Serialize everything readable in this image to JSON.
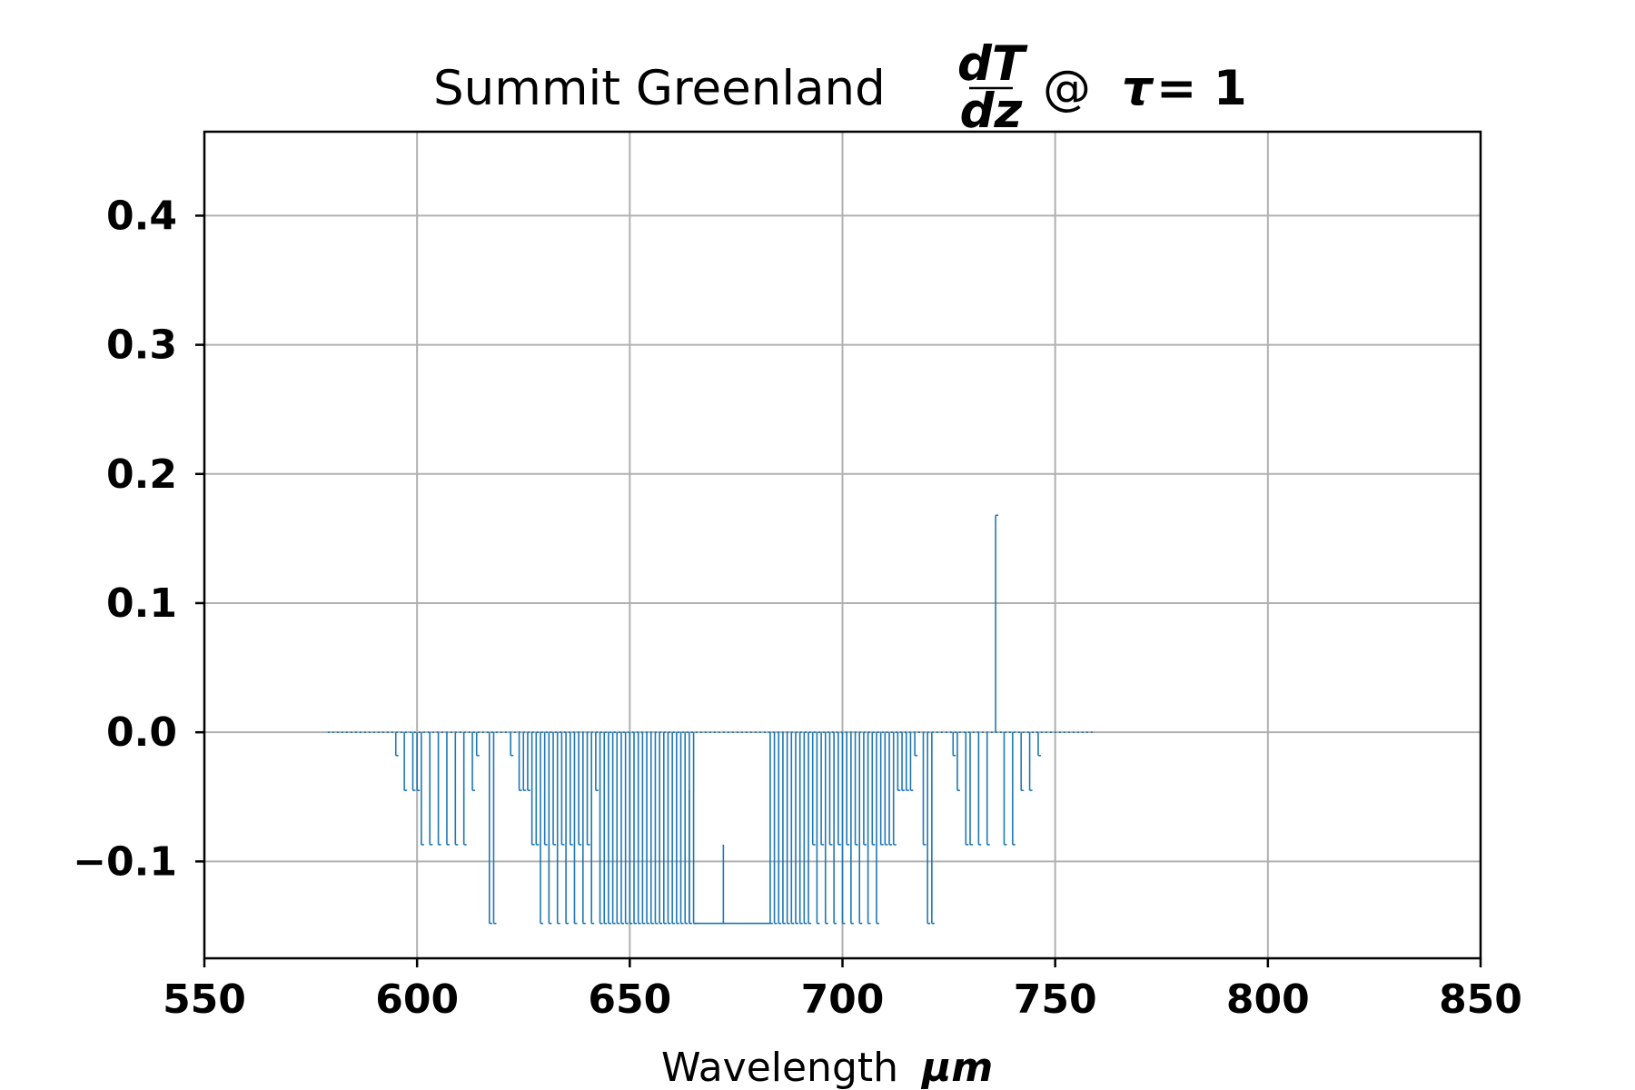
{
  "chart_data": {
    "type": "line",
    "title": {
      "prefix": "Summit Greenland",
      "fraction_numerator": "dT",
      "fraction_denominator": "dz",
      "suffix": "@",
      "tau_symbol": "τ",
      "tau_equals": "= 1"
    },
    "xlabel": {
      "text": "Wavelength",
      "unit": "μm"
    },
    "ylabel": "",
    "xlim": [
      550,
      850
    ],
    "ylim": [
      -0.175,
      0.465
    ],
    "x_ticks": [
      550,
      600,
      650,
      700,
      750,
      800,
      850
    ],
    "x_tick_labels": [
      "550",
      "600",
      "650",
      "700",
      "750",
      "800",
      "850"
    ],
    "y_ticks": [
      -0.1,
      0.0,
      0.1,
      0.2,
      0.3,
      0.4
    ],
    "y_tick_labels": [
      "−0.1",
      "0.0",
      "0.1",
      "0.2",
      "0.3",
      "0.4"
    ],
    "grid": true,
    "line_color": "#1f77b4",
    "series": [
      {
        "x_range": [
          579,
          759
        ],
        "baseline": 0.0,
        "spikes": [
          {
            "x": 595,
            "y": -0.018
          },
          {
            "x": 597,
            "y": -0.045
          },
          {
            "x": 599,
            "y": -0.045
          },
          {
            "x": 600,
            "y": -0.045
          },
          {
            "x": 601,
            "y": -0.087
          },
          {
            "x": 603,
            "y": -0.087
          },
          {
            "x": 605,
            "y": -0.087
          },
          {
            "x": 607,
            "y": -0.087
          },
          {
            "x": 609,
            "y": -0.087
          },
          {
            "x": 611,
            "y": -0.087
          },
          {
            "x": 613,
            "y": -0.045
          },
          {
            "x": 614,
            "y": -0.018
          },
          {
            "x": 617,
            "y": -0.148
          },
          {
            "x": 618,
            "y": -0.148
          },
          {
            "x": 622,
            "y": -0.018
          },
          {
            "x": 624,
            "y": -0.045
          },
          {
            "x": 625,
            "y": -0.045
          },
          {
            "x": 626,
            "y": -0.045
          },
          {
            "x": 627,
            "y": -0.087
          },
          {
            "x": 628,
            "y": -0.087
          },
          {
            "x": 629,
            "y": -0.148
          },
          {
            "x": 630,
            "y": -0.087
          },
          {
            "x": 631,
            "y": -0.148
          },
          {
            "x": 632,
            "y": -0.087
          },
          {
            "x": 633,
            "y": -0.148
          },
          {
            "x": 634,
            "y": -0.087
          },
          {
            "x": 635,
            "y": -0.148
          },
          {
            "x": 636,
            "y": -0.087
          },
          {
            "x": 637,
            "y": -0.148
          },
          {
            "x": 638,
            "y": -0.087
          },
          {
            "x": 639,
            "y": -0.148
          },
          {
            "x": 640,
            "y": -0.087
          },
          {
            "x": 641,
            "y": -0.148
          },
          {
            "x": 642,
            "y": -0.045
          },
          {
            "x": 643,
            "y": -0.148
          },
          {
            "x": 644,
            "y": -0.148
          },
          {
            "x": 645,
            "y": -0.148
          },
          {
            "x": 646,
            "y": -0.148
          },
          {
            "x": 647,
            "y": -0.148
          },
          {
            "x": 648,
            "y": -0.148
          },
          {
            "x": 649,
            "y": -0.148
          },
          {
            "x": 650,
            "y": -0.148
          },
          {
            "x": 651,
            "y": -0.148
          },
          {
            "x": 652,
            "y": -0.148
          },
          {
            "x": 653,
            "y": -0.148
          },
          {
            "x": 654,
            "y": -0.148
          },
          {
            "x": 655,
            "y": -0.148
          },
          {
            "x": 656,
            "y": -0.148
          },
          {
            "x": 657,
            "y": -0.148
          },
          {
            "x": 658,
            "y": -0.148
          },
          {
            "x": 659,
            "y": -0.148
          },
          {
            "x": 660,
            "y": -0.148
          },
          {
            "x": 661,
            "y": -0.148
          },
          {
            "x": 662,
            "y": -0.148
          },
          {
            "x": 663,
            "y": -0.148
          },
          {
            "x": 664,
            "y": -0.148
          },
          {
            "x": 665,
            "y": -0.148
          },
          {
            "x": 683,
            "y": -0.148
          },
          {
            "x": 684,
            "y": -0.148
          },
          {
            "x": 685,
            "y": -0.148
          },
          {
            "x": 686,
            "y": -0.148
          },
          {
            "x": 687,
            "y": -0.148
          },
          {
            "x": 688,
            "y": -0.148
          },
          {
            "x": 689,
            "y": -0.148
          },
          {
            "x": 690,
            "y": -0.148
          },
          {
            "x": 691,
            "y": -0.148
          },
          {
            "x": 692,
            "y": -0.148
          },
          {
            "x": 693,
            "y": -0.087
          },
          {
            "x": 694,
            "y": -0.148
          },
          {
            "x": 695,
            "y": -0.087
          },
          {
            "x": 696,
            "y": -0.148
          },
          {
            "x": 697,
            "y": -0.087
          },
          {
            "x": 698,
            "y": -0.148
          },
          {
            "x": 699,
            "y": -0.087
          },
          {
            "x": 700,
            "y": -0.148
          },
          {
            "x": 701,
            "y": -0.087
          },
          {
            "x": 702,
            "y": -0.148
          },
          {
            "x": 703,
            "y": -0.087
          },
          {
            "x": 704,
            "y": -0.148
          },
          {
            "x": 705,
            "y": -0.087
          },
          {
            "x": 706,
            "y": -0.148
          },
          {
            "x": 707,
            "y": -0.087
          },
          {
            "x": 708,
            "y": -0.148
          },
          {
            "x": 709,
            "y": -0.087
          },
          {
            "x": 710,
            "y": -0.087
          },
          {
            "x": 711,
            "y": -0.087
          },
          {
            "x": 712,
            "y": -0.087
          },
          {
            "x": 713,
            "y": -0.045
          },
          {
            "x": 714,
            "y": -0.045
          },
          {
            "x": 715,
            "y": -0.045
          },
          {
            "x": 716,
            "y": -0.045
          },
          {
            "x": 717,
            "y": -0.018
          },
          {
            "x": 719,
            "y": -0.087
          },
          {
            "x": 720,
            "y": -0.148
          },
          {
            "x": 721,
            "y": -0.148
          },
          {
            "x": 726,
            "y": -0.018
          },
          {
            "x": 727,
            "y": -0.045
          },
          {
            "x": 729,
            "y": -0.087
          },
          {
            "x": 730,
            "y": -0.087
          },
          {
            "x": 732,
            "y": -0.087
          },
          {
            "x": 734,
            "y": -0.087
          },
          {
            "x": 736,
            "y": 0.168
          },
          {
            "x": 738,
            "y": -0.087
          },
          {
            "x": 740,
            "y": -0.087
          },
          {
            "x": 742,
            "y": -0.045
          },
          {
            "x": 744,
            "y": -0.045
          },
          {
            "x": 746,
            "y": -0.018
          }
        ],
        "flat_bottom": {
          "x_start": 665,
          "x_end": 683,
          "y": -0.148
        },
        "flat_bottom_spikes": [
          {
            "x": 664,
            "y": -0.045
          },
          {
            "x": 672,
            "y": -0.087
          }
        ]
      }
    ]
  }
}
